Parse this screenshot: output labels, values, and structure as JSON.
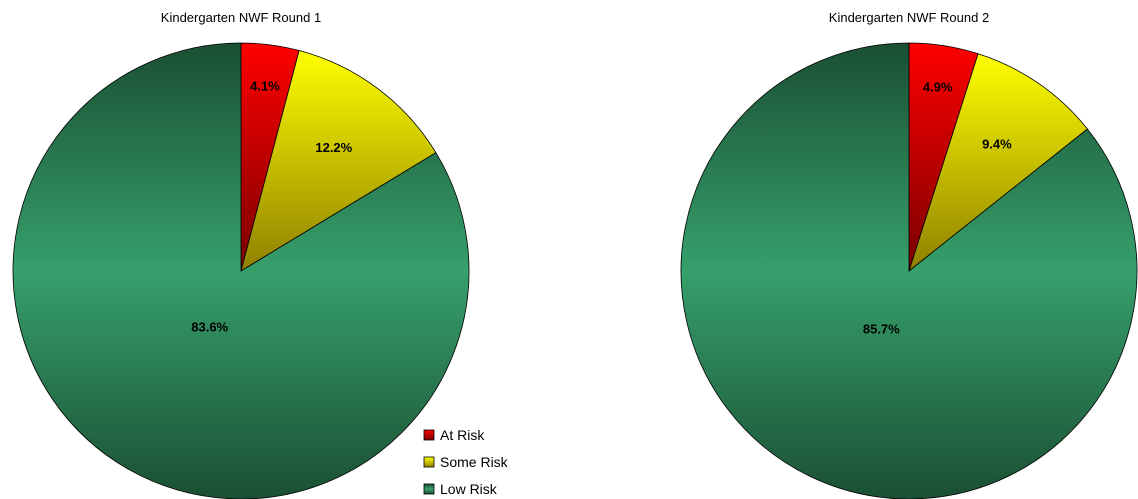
{
  "chart_data": [
    {
      "type": "pie",
      "title": "Kindergarten NWF Round 1",
      "categories": [
        "At Risk",
        "Some Risk",
        "Low Risk"
      ],
      "values": [
        4.1,
        12.2,
        83.6
      ],
      "labels": [
        "4.1%",
        "12.2%",
        "83.6%"
      ],
      "colors": [
        "#e00000",
        "#e6e600",
        "#2e8b57"
      ],
      "legend_position": "bottom-right"
    },
    {
      "type": "pie",
      "title": "Kindergarten NWF Round 2",
      "categories": [
        "At Risk",
        "Some Risk",
        "Low Risk"
      ],
      "values": [
        4.9,
        9.4,
        85.7
      ],
      "labels": [
        "4.9%",
        "9.4%",
        "85.7%"
      ],
      "colors": [
        "#e00000",
        "#e6e600",
        "#2e8b57"
      ]
    }
  ],
  "legend": {
    "items": [
      {
        "label": "At Risk",
        "color": "#e00000"
      },
      {
        "label": "Some Risk",
        "color": "#e6e600"
      },
      {
        "label": "Low Risk",
        "color": "#2e8b57"
      }
    ]
  }
}
